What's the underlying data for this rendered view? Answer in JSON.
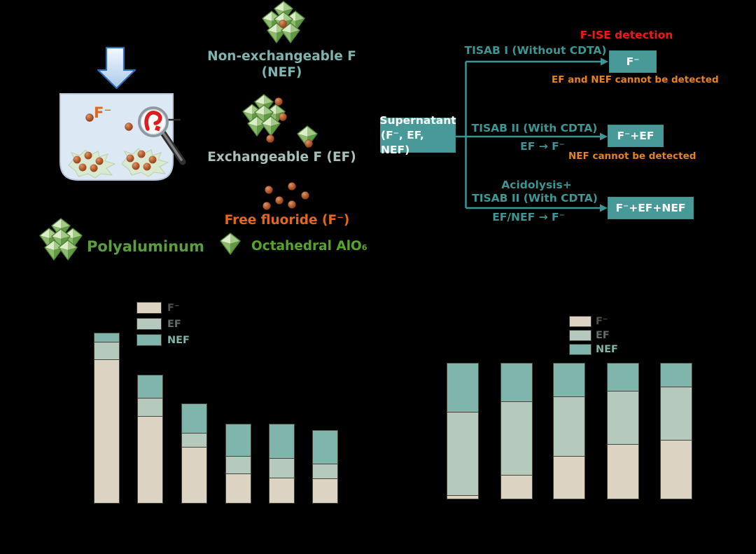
{
  "figure": {
    "background": "#000000",
    "note": "axis lines, tick labels and category labels of both charts are black-on-black (not visible)"
  },
  "sample_panel": {
    "fluoride_ion_label": "F⁻",
    "polyaluminum_label": "Polyaluminum",
    "icons": {
      "down_arrow_icon": "blue block arrow",
      "beaker_icon": "light-blue vessel",
      "magnifier_icon": "magnifying glass with red query squiggle",
      "floc_icon": "green floc with adsorbed fluoride dots",
      "polyaluminum_cluster_icon": "cluster of green octahedra"
    },
    "colors": {
      "arrow_stroke": "#2e6cb3",
      "beaker_fill": "#dce9f5",
      "fluoride_dot": "#a84e28",
      "label_orange": "#e2671c",
      "label_green": "#5c9e3f"
    }
  },
  "species_column": {
    "nef": {
      "title": "Non-exchangeable F",
      "subtitle": "(NEF)",
      "color": "#7fb4b1"
    },
    "ef": {
      "label": "Exchangeable F (EF)",
      "color": "#a7c0b8"
    },
    "free_f": {
      "label": "Free fluoride (F⁻)",
      "color": "#e2671c"
    },
    "octahedral": {
      "label": "Octahedral AlO₆",
      "color": "#55a42c"
    }
  },
  "flow": {
    "title": "F-ISE detection",
    "title_color": "#fb1414",
    "source_box": {
      "line1": "Supernatant",
      "line2": "(F⁻, EF, NEF)"
    },
    "branches": [
      {
        "condition": "TISAB I (Without CDTA)",
        "result": "F⁻",
        "note": "EF and NEF cannot be detected"
      },
      {
        "condition": "TISAB II (With CDTA)",
        "conversion": "EF → F⁻",
        "result": "F⁻+EF",
        "note": "NEF cannot be detected"
      },
      {
        "condition_line1": "Acidolysis+",
        "condition_line2": "TISAB II (With CDTA)",
        "conversion": "EF/NEF → F⁻",
        "result": "F⁻+EF+NEF"
      }
    ],
    "colors": {
      "teal_text": "#3d9694",
      "box_fill": "#479a98",
      "note_orange": "#e8821f"
    }
  },
  "chart_data": [
    {
      "type": "bar",
      "subtype": "stacked",
      "title": "",
      "xlabel": "",
      "ylabel": "",
      "categories": [
        "",
        "",
        "",
        "",
        "",
        ""
      ],
      "categories_visible": false,
      "units": "relative height, tallest bar = 100 (axis labels not visible)",
      "series": [
        {
          "name": "F⁻",
          "color": "#ddd3c3",
          "values": [
            84.0,
            50.8,
            32.8,
            17.2,
            14.8,
            14.3
          ]
        },
        {
          "name": "EF",
          "color": "#b5c9bc",
          "values": [
            10.2,
            10.7,
            8.2,
            10.2,
            11.5,
            8.6
          ]
        },
        {
          "name": "NEF",
          "color": "#7fb5ab",
          "values": [
            5.7,
            13.9,
            17.6,
            19.3,
            20.5,
            20.1
          ]
        }
      ],
      "legend_position": "upper area, right of first bar",
      "grid": false
    },
    {
      "type": "bar",
      "subtype": "stacked-100pct",
      "title": "",
      "xlabel": "",
      "ylabel": "",
      "categories": [
        "",
        "",
        "",
        "",
        ""
      ],
      "categories_visible": false,
      "units": "percent of bar total (axis labels not visible)",
      "series": [
        {
          "name": "F⁻",
          "color": "#ddd3c3",
          "values": [
            2.6,
            17.4,
            31.3,
            40.0,
            43.1
          ]
        },
        {
          "name": "EF",
          "color": "#b5c9bc",
          "values": [
            61.0,
            53.8,
            43.6,
            39.0,
            39.0
          ]
        },
        {
          "name": "NEF",
          "color": "#7fb5ab",
          "values": [
            36.4,
            28.7,
            25.1,
            21.0,
            17.9
          ]
        }
      ],
      "legend_position": "top center above bars",
      "grid": false
    }
  ]
}
